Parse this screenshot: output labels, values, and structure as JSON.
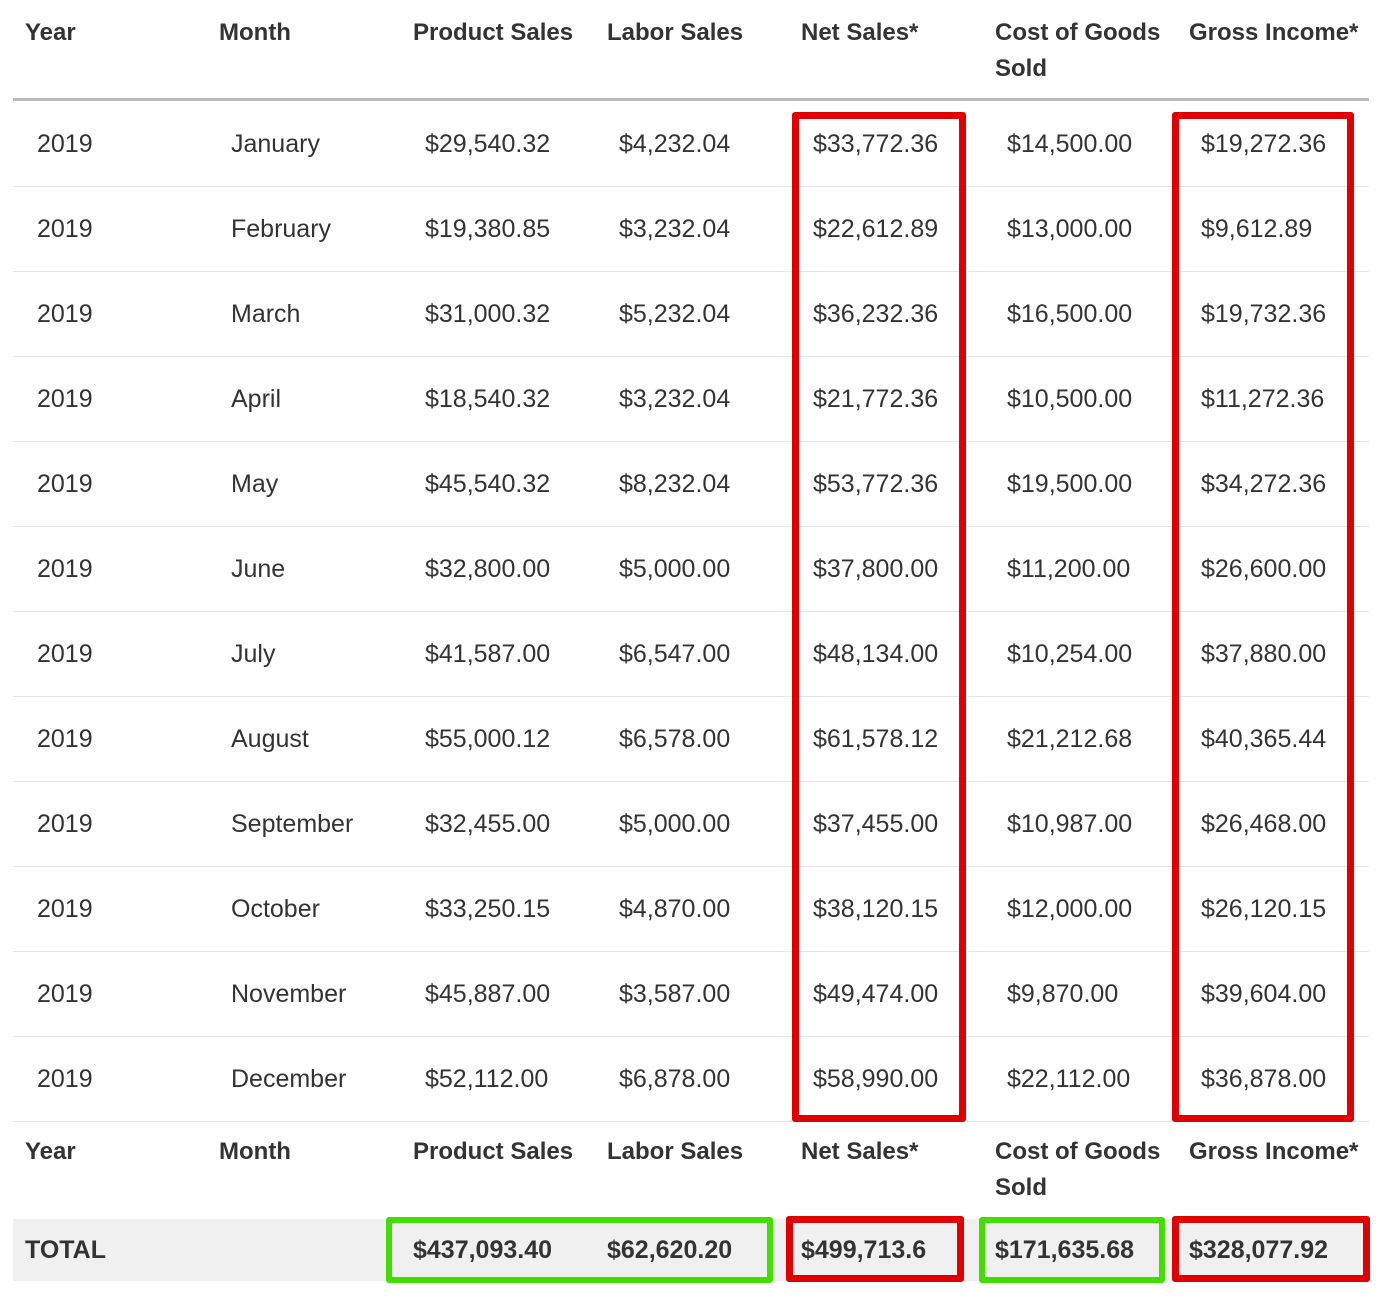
{
  "headers": [
    "Year",
    "Month",
    "Product Sales",
    "Labor Sales",
    "Net Sales*",
    "Cost of Goods Sold",
    "Gross Income*"
  ],
  "rows": [
    [
      "2019",
      "January",
      "$29,540.32",
      "$4,232.04",
      "$33,772.36",
      "$14,500.00",
      "$19,272.36"
    ],
    [
      "2019",
      "February",
      "$19,380.85",
      "$3,232.04",
      "$22,612.89",
      "$13,000.00",
      "$9,612.89"
    ],
    [
      "2019",
      "March",
      "$31,000.32",
      "$5,232.04",
      "$36,232.36",
      "$16,500.00",
      "$19,732.36"
    ],
    [
      "2019",
      "April",
      "$18,540.32",
      "$3,232.04",
      "$21,772.36",
      "$10,500.00",
      "$11,272.36"
    ],
    [
      "2019",
      "May",
      "$45,540.32",
      "$8,232.04",
      "$53,772.36",
      "$19,500.00",
      "$34,272.36"
    ],
    [
      "2019",
      "June",
      "$32,800.00",
      "$5,000.00",
      "$37,800.00",
      "$11,200.00",
      "$26,600.00"
    ],
    [
      "2019",
      "July",
      "$41,587.00",
      "$6,547.00",
      "$48,134.00",
      "$10,254.00",
      "$37,880.00"
    ],
    [
      "2019",
      "August",
      "$55,000.12",
      "$6,578.00",
      "$61,578.12",
      "$21,212.68",
      "$40,365.44"
    ],
    [
      "2019",
      "September",
      "$32,455.00",
      "$5,000.00",
      "$37,455.00",
      "$10,987.00",
      "$26,468.00"
    ],
    [
      "2019",
      "October",
      "$33,250.15",
      "$4,870.00",
      "$38,120.15",
      "$12,000.00",
      "$26,120.15"
    ],
    [
      "2019",
      "November",
      "$45,887.00",
      "$3,587.00",
      "$49,474.00",
      "$9,870.00",
      "$39,604.00"
    ],
    [
      "2019",
      "December",
      "$52,112.00",
      "$6,878.00",
      "$58,990.00",
      "$22,112.00",
      "$36,878.00"
    ]
  ],
  "total": {
    "label": "TOTAL",
    "month": "",
    "product_sales": "$437,093.40",
    "labor_sales": "$62,620.20",
    "net_sales": "$499,713.6",
    "cost_of_goods_sold": "$171,635.68",
    "gross_income": "$328,077.92"
  },
  "highlight_colors": {
    "red": "#e00000",
    "green": "#44dd00"
  }
}
